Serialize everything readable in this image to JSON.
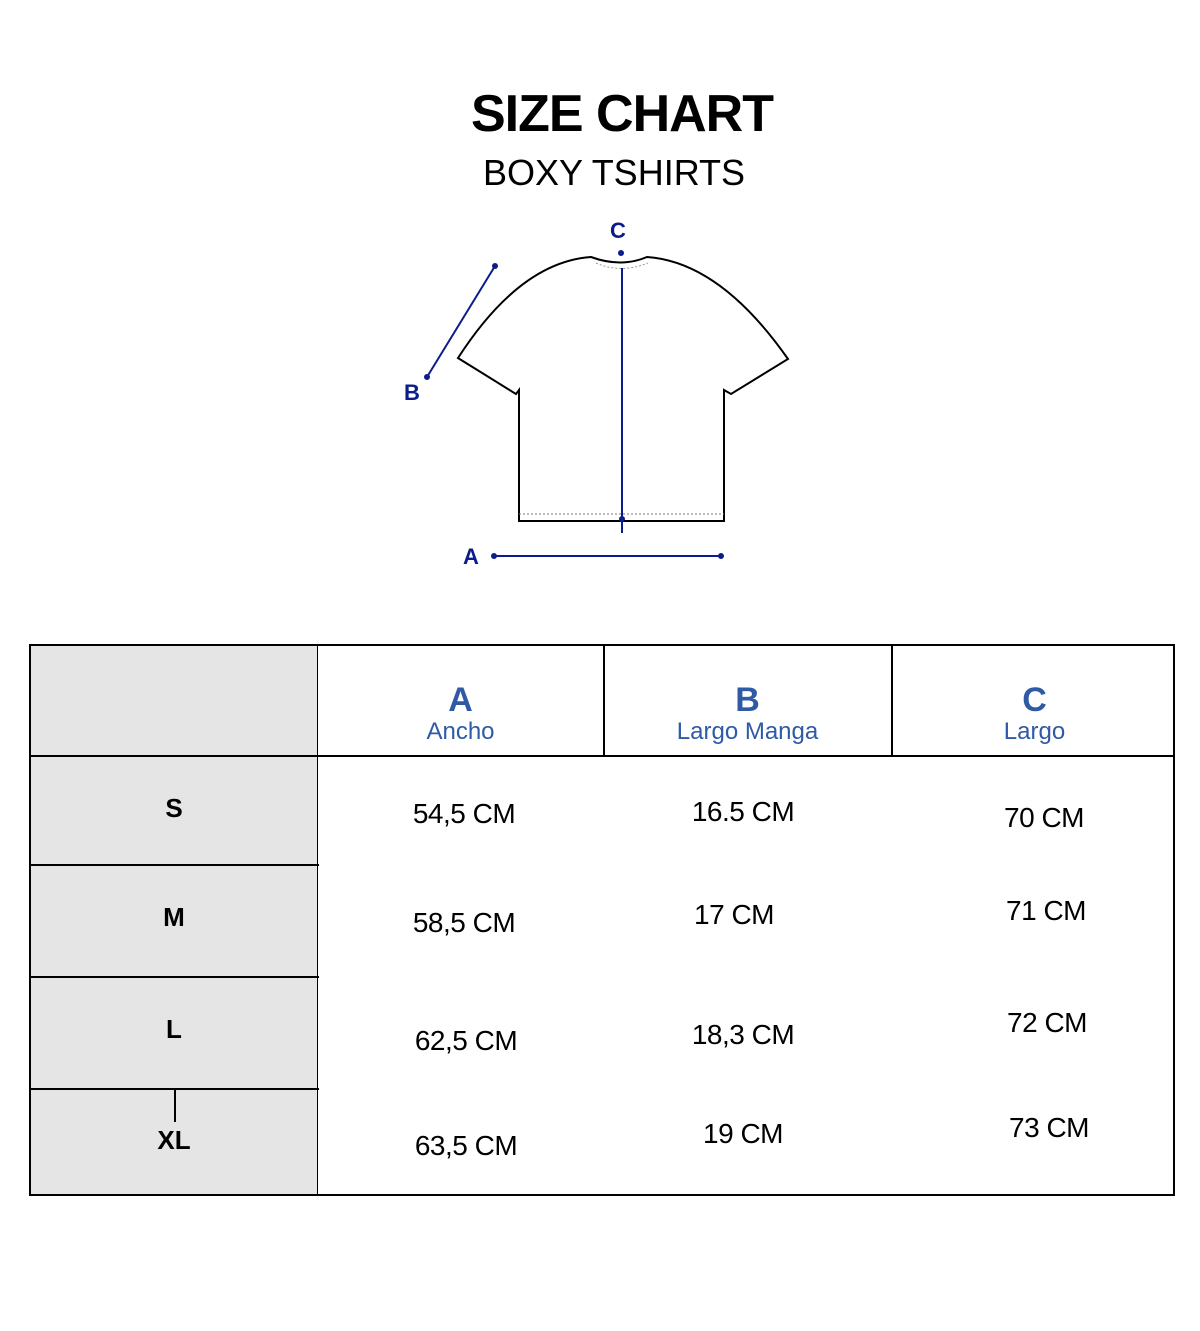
{
  "title": "SIZE CHART",
  "subtitle": "BOXY TSHIRTS",
  "diagram": {
    "labels": {
      "a": "A",
      "b": "B",
      "c": "C"
    },
    "accent_color": "#0b1d8a"
  },
  "table": {
    "header_color": "#2e5aa6",
    "columns": [
      {
        "key": "A",
        "name": "Ancho"
      },
      {
        "key": "B",
        "name": "Largo Manga"
      },
      {
        "key": "C",
        "name": "Largo"
      }
    ],
    "rows": [
      {
        "size": "S",
        "values": [
          "54,5 CM",
          "16.5 CM",
          "70 CM"
        ]
      },
      {
        "size": "M",
        "values": [
          "58,5 CM",
          "17 CM",
          "71 CM"
        ]
      },
      {
        "size": "L",
        "values": [
          "62,5 CM",
          "18,3 CM",
          "72 CM"
        ]
      },
      {
        "size": "XL",
        "values": [
          "63,5 CM",
          "19 CM",
          "73 CM"
        ]
      }
    ]
  }
}
